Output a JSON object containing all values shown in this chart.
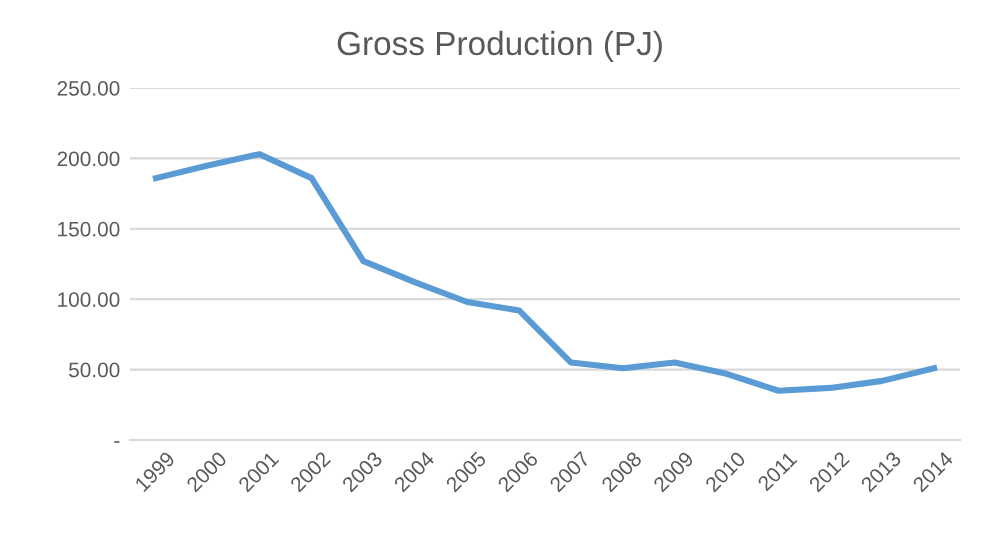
{
  "chart_data": {
    "type": "line",
    "title": "Gross Production (PJ)",
    "categories": [
      "1999",
      "2000",
      "2001",
      "2002",
      "2003",
      "2004",
      "2005",
      "2006",
      "2007",
      "2008",
      "2009",
      "2010",
      "2011",
      "2012",
      "2013",
      "2014"
    ],
    "series": [
      {
        "color": "#5b9bd5",
        "values": [
          186,
          195,
          203,
          186,
          127,
          112,
          98,
          92,
          55,
          51,
          55,
          47,
          35,
          37,
          42,
          51
        ]
      }
    ],
    "ylim": [
      0,
      250
    ],
    "yticks": [
      {
        "value": 0,
        "label": "-"
      },
      {
        "value": 50,
        "label": "50.00"
      },
      {
        "value": 100,
        "label": "100.00"
      },
      {
        "value": 150,
        "label": "150.00"
      },
      {
        "value": 200,
        "label": "200.00"
      },
      {
        "value": 250,
        "label": "250.00"
      }
    ],
    "grid": "y",
    "legend": false,
    "marker": "none",
    "line_style": "solid"
  }
}
